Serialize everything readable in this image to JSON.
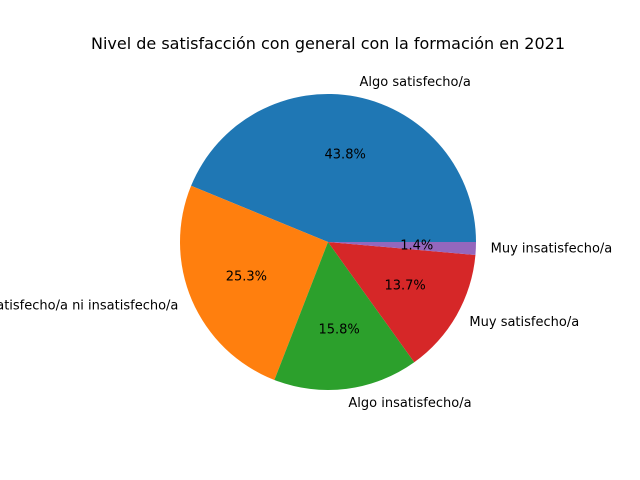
{
  "chart_data": {
    "type": "pie",
    "title": "Nivel de satisfacción con general con la formación en 2021",
    "slices": [
      {
        "label": "Algo satisfecho/a",
        "value": 43.8,
        "pct_label": "43.8%",
        "color": "#1f77b4"
      },
      {
        "label": "Ni satisfecho/a ni insatisfecho/a",
        "value": 25.3,
        "pct_label": "25.3%",
        "color": "#ff7f0e"
      },
      {
        "label": "Algo insatisfecho/a",
        "value": 15.8,
        "pct_label": "15.8%",
        "color": "#2ca02c"
      },
      {
        "label": "Muy satisfecho/a",
        "value": 13.7,
        "pct_label": "13.7%",
        "color": "#d62728"
      },
      {
        "label": "Muy insatisfecho/a",
        "value": 1.4,
        "pct_label": "1.4%",
        "color": "#9467bd"
      }
    ],
    "start_angle_deg": 0,
    "direction": "counterclockwise",
    "legend": "none"
  }
}
